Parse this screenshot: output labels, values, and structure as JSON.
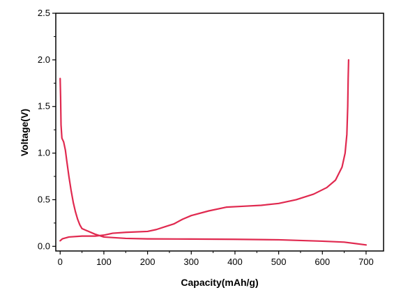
{
  "chart_data": {
    "type": "line",
    "xlabel": "Capacity(mAh/g)",
    "ylabel": "Voltage(V)",
    "xlim": [
      -10,
      740
    ],
    "ylim": [
      -0.05,
      2.5
    ],
    "xticks": [
      0,
      100,
      200,
      300,
      400,
      500,
      600,
      700
    ],
    "yticks": [
      0.0,
      0.5,
      1.0,
      1.5,
      2.0,
      2.5
    ],
    "grid": false,
    "line_color": "#e0294f",
    "series": [
      {
        "points": [
          [
            0,
            1.8
          ],
          [
            1,
            1.6
          ],
          [
            2,
            1.3
          ],
          [
            4,
            1.16
          ],
          [
            8,
            1.12
          ],
          [
            12,
            1.03
          ],
          [
            15,
            0.92
          ],
          [
            20,
            0.75
          ],
          [
            25,
            0.6
          ],
          [
            30,
            0.47
          ],
          [
            35,
            0.37
          ],
          [
            40,
            0.29
          ],
          [
            45,
            0.23
          ],
          [
            50,
            0.19
          ],
          [
            60,
            0.17
          ],
          [
            80,
            0.13
          ],
          [
            100,
            0.1
          ],
          [
            150,
            0.085
          ],
          [
            200,
            0.08
          ],
          [
            300,
            0.078
          ],
          [
            400,
            0.075
          ],
          [
            500,
            0.07
          ],
          [
            600,
            0.055
          ],
          [
            650,
            0.045
          ],
          [
            700,
            0.015
          ]
        ]
      },
      {
        "points": [
          [
            0,
            0.06
          ],
          [
            5,
            0.08
          ],
          [
            20,
            0.1
          ],
          [
            50,
            0.11
          ],
          [
            80,
            0.11
          ],
          [
            100,
            0.12
          ],
          [
            120,
            0.14
          ],
          [
            150,
            0.15
          ],
          [
            200,
            0.16
          ],
          [
            220,
            0.18
          ],
          [
            240,
            0.21
          ],
          [
            260,
            0.24
          ],
          [
            280,
            0.29
          ],
          [
            300,
            0.33
          ],
          [
            340,
            0.38
          ],
          [
            380,
            0.42
          ],
          [
            420,
            0.43
          ],
          [
            460,
            0.44
          ],
          [
            500,
            0.46
          ],
          [
            540,
            0.5
          ],
          [
            580,
            0.56
          ],
          [
            610,
            0.63
          ],
          [
            630,
            0.71
          ],
          [
            645,
            0.85
          ],
          [
            652,
            1.0
          ],
          [
            656,
            1.2
          ],
          [
            658,
            1.5
          ],
          [
            659,
            1.8
          ],
          [
            660,
            2.0
          ]
        ]
      }
    ]
  }
}
